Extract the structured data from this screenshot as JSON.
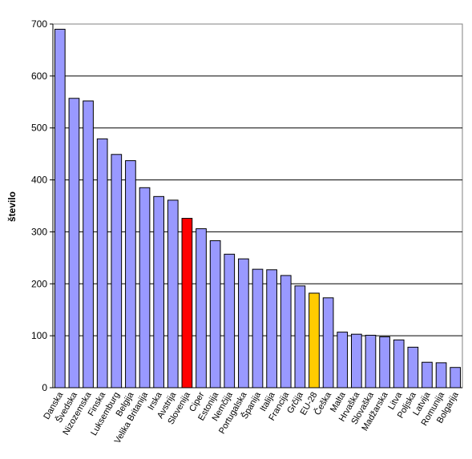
{
  "chart_data": {
    "type": "bar",
    "title": "",
    "xlabel": "",
    "ylabel": "število",
    "ylim": [
      0,
      700
    ],
    "yticks": [
      0,
      100,
      200,
      300,
      400,
      500,
      600,
      700
    ],
    "grid": true,
    "legend": "none",
    "default_color": "#9999ff",
    "categories": [
      "Danska",
      "Švedska",
      "Nizozemska",
      "Finska",
      "Luksemburg",
      "Belgija",
      "Velika Britanija",
      "Irska",
      "Avstrija",
      "Slovenija",
      "Ciper",
      "Estonija",
      "Nemčija",
      "Portugalska",
      "Španija",
      "Italija",
      "Francija",
      "Grčija",
      "EU-28",
      "Češka",
      "Malta",
      "Hrvaška",
      "Slovaška",
      "Madžarska",
      "Litva",
      "Poljska",
      "Latvija",
      "Romunija",
      "Bolgarija"
    ],
    "values": [
      690,
      557,
      552,
      479,
      449,
      437,
      385,
      368,
      361,
      326,
      306,
      283,
      257,
      248,
      228,
      227,
      216,
      196,
      182,
      173,
      107,
      103,
      101,
      98,
      92,
      78,
      49,
      48,
      39
    ],
    "highlights": {
      "Slovenija": "#ff0000",
      "EU-28": "#ffcc00"
    }
  }
}
